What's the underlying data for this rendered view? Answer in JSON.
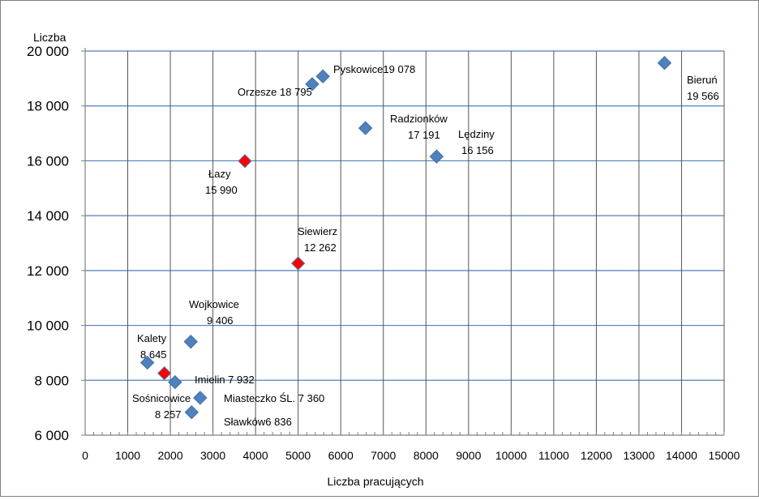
{
  "chart_data": {
    "type": "scatter",
    "title": "",
    "ylabel": "Liczba",
    "xlabel": "Liczba pracujących",
    "xlim": [
      0,
      15000
    ],
    "ylim": [
      6000,
      20000
    ],
    "grid": true,
    "x_ticks": [
      "0",
      "1000",
      "2000",
      "3000",
      "4000",
      "5000",
      "6000",
      "7000",
      "8000",
      "9000",
      "10000",
      "11000",
      "12000",
      "13000",
      "14000",
      "15000"
    ],
    "y_ticks": [
      "6 000",
      "8 000",
      "10 000",
      "12 000",
      "14 000",
      "16 000",
      "18 000",
      "20 000"
    ],
    "colors": {
      "blue": "#4f81bd",
      "red": "#ff0000",
      "grid": "#4f81bd",
      "axis": "#7f7f7f"
    },
    "points": [
      {
        "name": "Bieruń",
        "value_text": "19 566",
        "x": 13600,
        "y": 19566,
        "color": "blue"
      },
      {
        "name": "Pyskowice",
        "value_text": "19 078",
        "x": 5580,
        "y": 19078,
        "color": "blue"
      },
      {
        "name": "Orzesze",
        "value_text": "18 795",
        "x": 5330,
        "y": 18795,
        "color": "blue"
      },
      {
        "name": "Radzionków",
        "value_text": "17 191",
        "x": 6580,
        "y": 17191,
        "color": "blue"
      },
      {
        "name": "Lędziny",
        "value_text": "16 156",
        "x": 8250,
        "y": 16156,
        "color": "blue"
      },
      {
        "name": "Łazy",
        "value_text": "15 990",
        "x": 3750,
        "y": 15990,
        "color": "red"
      },
      {
        "name": "Siewierz",
        "value_text": "12 262",
        "x": 5000,
        "y": 12262,
        "color": "red"
      },
      {
        "name": "Wojkowice",
        "value_text": "9 406",
        "x": 2480,
        "y": 9406,
        "color": "blue"
      },
      {
        "name": "Kalety",
        "value_text": "8 645",
        "x": 1460,
        "y": 8645,
        "color": "blue"
      },
      {
        "name": "Sośnicowice",
        "value_text": "8 257",
        "x": 1860,
        "y": 8257,
        "color": "red"
      },
      {
        "name": "Imielin",
        "value_text": "7 932",
        "x": 2110,
        "y": 7932,
        "color": "blue"
      },
      {
        "name": "Miasteczko Śl.",
        "value_text": "7 360",
        "x": 2700,
        "y": 7360,
        "color": "blue"
      },
      {
        "name": "Sławków",
        "value_text": "6 836",
        "x": 2500,
        "y": 6836,
        "color": "blue"
      }
    ],
    "point_labels": [
      {
        "lines": [
          "Bieruń",
          "19 566"
        ]
      },
      {
        "lines": [
          "Pyskowice19 078"
        ]
      },
      {
        "lines": [
          "Orzesze 18 795"
        ]
      },
      {
        "lines": [
          "Radzionków",
          "17 191"
        ]
      },
      {
        "lines": [
          "Lędziny",
          "16 156"
        ]
      },
      {
        "lines": [
          "Łazy",
          "15 990"
        ]
      },
      {
        "lines": [
          "Siewierz",
          "12 262"
        ]
      },
      {
        "lines": [
          "Wojkowice",
          "9 406"
        ]
      },
      {
        "lines": [
          "Kalety",
          "8 645"
        ]
      },
      {
        "lines": [
          "Sośnicowice",
          "8 257"
        ]
      },
      {
        "lines": [
          "Imielin 7 932"
        ]
      },
      {
        "lines": [
          "Miasteczko ŚL.  7 360"
        ]
      },
      {
        "lines": [
          "Sławków6 836"
        ]
      }
    ]
  }
}
